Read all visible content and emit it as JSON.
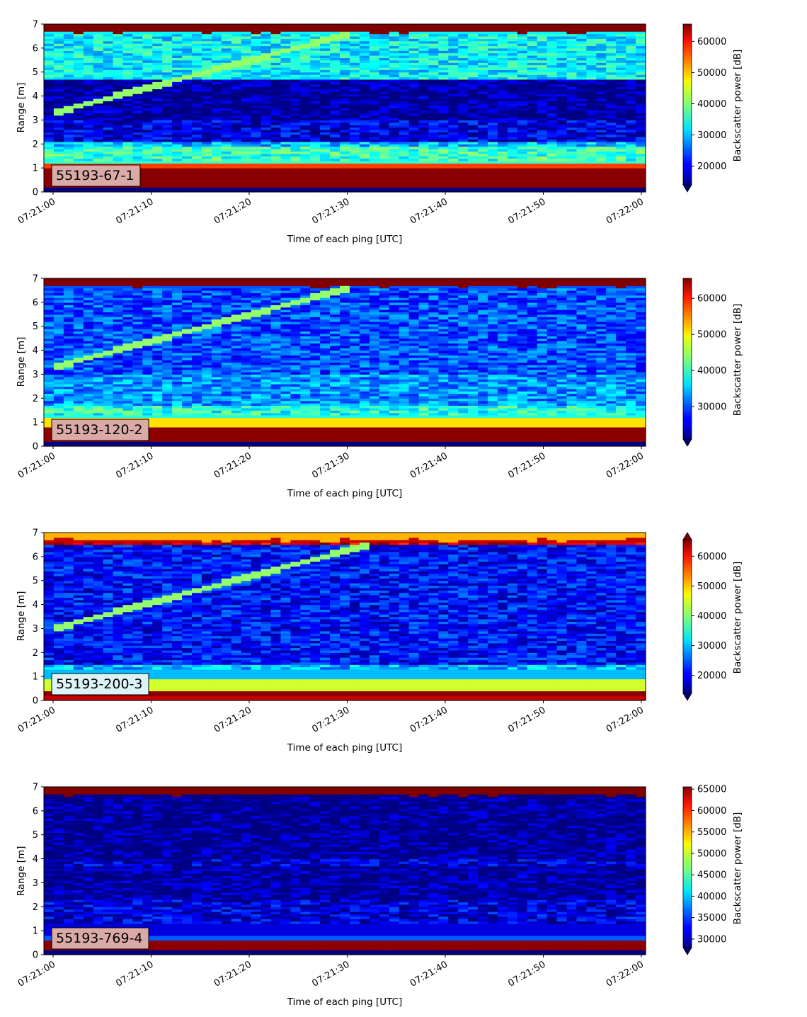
{
  "chart_data": [
    {
      "type": "heatmap",
      "label": "55193-67-1",
      "label_bg": "#d9aaa6",
      "xlabel": "Time of each ping [UTC]",
      "ylabel": "Range [m]",
      "colorbar_label": "Backscatter power [dB]",
      "colormap": "jet",
      "ylim": [
        0,
        7
      ],
      "yticks": [
        "0",
        "1",
        "2",
        "3",
        "4",
        "5",
        "6",
        "7"
      ],
      "xticks": [
        "07:21:00",
        "07:21:10",
        "07:21:20",
        "07:21:30",
        "07:21:40",
        "07:21:50",
        "07:22:00"
      ],
      "clim": [
        14000,
        65535
      ],
      "cbar_ticks": [
        20000,
        30000,
        40000,
        50000,
        60000
      ],
      "cbar_tick_labels": [
        "20000",
        "30000",
        "40000",
        "50000",
        "60000"
      ],
      "extend": "min",
      "target_track": {
        "start_range_m": 3.3,
        "end_range_m": 6.6,
        "end_time_s": 30
      },
      "bands": [
        {
          "range_m": [
            0.2,
            1.0
          ],
          "level": 65000
        },
        {
          "range_m": [
            1.0,
            1.2
          ],
          "level": 56000
        },
        {
          "range_m": [
            1.2,
            1.9
          ],
          "level": 36000
        },
        {
          "range_m": [
            1.9,
            2.1
          ],
          "level": 30000
        },
        {
          "range_m": [
            2.1,
            3.0
          ],
          "level": 19000
        },
        {
          "range_m": [
            3.0,
            4.7
          ],
          "level": 15500
        },
        {
          "range_m": [
            4.7,
            6.7
          ],
          "level": 33000
        },
        {
          "range_m": [
            6.7,
            7.0
          ],
          "level": 65535
        }
      ]
    },
    {
      "type": "heatmap",
      "label": "55193-120-2",
      "label_bg": "#d9aaa6",
      "xlabel": "Time of each ping [UTC]",
      "ylabel": "Range [m]",
      "colorbar_label": "Backscatter power [dB]",
      "colormap": "jet",
      "ylim": [
        0,
        7
      ],
      "yticks": [
        "0",
        "1",
        "2",
        "3",
        "4",
        "5",
        "6",
        "7"
      ],
      "xticks": [
        "07:21:00",
        "07:21:10",
        "07:21:20",
        "07:21:30",
        "07:21:40",
        "07:21:50",
        "07:22:00"
      ],
      "clim": [
        21000,
        65535
      ],
      "cbar_ticks": [
        30000,
        40000,
        50000,
        60000
      ],
      "cbar_tick_labels": [
        "30000",
        "40000",
        "50000",
        "60000"
      ],
      "extend": "min",
      "target_track": {
        "start_range_m": 3.3,
        "end_range_m": 6.6,
        "end_time_s": 30
      },
      "bands": [
        {
          "range_m": [
            0.2,
            0.8
          ],
          "level": 65000
        },
        {
          "range_m": [
            0.8,
            1.2
          ],
          "level": 50000
        },
        {
          "range_m": [
            1.2,
            1.7
          ],
          "level": 39000
        },
        {
          "range_m": [
            1.7,
            3.0
          ],
          "level": 33000
        },
        {
          "range_m": [
            3.0,
            6.7
          ],
          "level": 30000
        },
        {
          "range_m": [
            6.7,
            7.0
          ],
          "level": 65535
        }
      ]
    },
    {
      "type": "heatmap",
      "label": "55193-200-3",
      "label_bg": "#dcf4f7",
      "xlabel": "Time of each ping [UTC]",
      "ylabel": "Range [m]",
      "colorbar_label": "Backscatter power [dB]",
      "colormap": "jet",
      "ylim": [
        0,
        7
      ],
      "yticks": [
        "0",
        "1",
        "2",
        "3",
        "4",
        "5",
        "6",
        "7"
      ],
      "xticks": [
        "07:21:00",
        "07:21:10",
        "07:21:20",
        "07:21:30",
        "07:21:40",
        "07:21:50",
        "07:22:00"
      ],
      "clim": [
        14000,
        65535
      ],
      "cbar_ticks": [
        20000,
        30000,
        40000,
        50000,
        60000
      ],
      "cbar_tick_labels": [
        "20000",
        "30000",
        "40000",
        "50000",
        "60000"
      ],
      "extend": "both",
      "target_track": {
        "start_range_m": 3.0,
        "end_range_m": 6.5,
        "end_time_s": 32
      },
      "bands": [
        {
          "range_m": [
            0.0,
            0.2
          ],
          "level": 62000
        },
        {
          "range_m": [
            0.2,
            0.4
          ],
          "level": 65000
        },
        {
          "range_m": [
            0.4,
            0.9
          ],
          "level": 44000
        },
        {
          "range_m": [
            0.9,
            1.5
          ],
          "level": 30000
        },
        {
          "range_m": [
            1.5,
            6.5
          ],
          "level": 21000
        },
        {
          "range_m": [
            6.5,
            6.8
          ],
          "level": 62000
        },
        {
          "range_m": [
            6.8,
            7.0
          ],
          "level": 50000
        }
      ]
    },
    {
      "type": "heatmap",
      "label": "55193-769-4",
      "label_bg": "#d9aaa6",
      "xlabel": "Time of each ping [UTC]",
      "ylabel": "Range [m]",
      "colorbar_label": "Backscatter power [dB]",
      "colormap": "jet",
      "ylim": [
        0,
        7
      ],
      "yticks": [
        "0",
        "1",
        "2",
        "3",
        "4",
        "5",
        "6",
        "7"
      ],
      "xticks": [
        "07:21:00",
        "07:21:10",
        "07:21:20",
        "07:21:30",
        "07:21:40",
        "07:21:50",
        "07:22:00"
      ],
      "clim": [
        28000,
        65535
      ],
      "cbar_ticks": [
        30000,
        35000,
        40000,
        45000,
        50000,
        55000,
        60000,
        65000
      ],
      "cbar_tick_labels": [
        "30000",
        "35000",
        "40000",
        "45000",
        "50000",
        "55000",
        "60000",
        "65000"
      ],
      "extend": "min",
      "target_track": null,
      "bands": [
        {
          "range_m": [
            0.2,
            0.6
          ],
          "level": 65000
        },
        {
          "range_m": [
            0.6,
            0.8
          ],
          "level": 36000
        },
        {
          "range_m": [
            0.8,
            2.3
          ],
          "level": 31500
        },
        {
          "range_m": [
            2.3,
            3.7
          ],
          "level": 29000
        },
        {
          "range_m": [
            3.7,
            4.0
          ],
          "level": 31000
        },
        {
          "range_m": [
            4.0,
            6.7
          ],
          "level": 28500
        },
        {
          "range_m": [
            6.7,
            7.0
          ],
          "level": 65535
        }
      ]
    }
  ]
}
